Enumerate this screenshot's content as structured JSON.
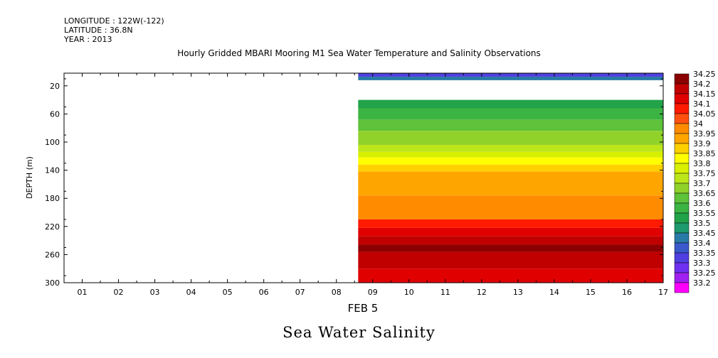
{
  "header": {
    "longitude": "LONGITUDE : 122W(-122)",
    "latitude": "LATITUDE : 36.8N",
    "year": "YEAR : 2013"
  },
  "chart_title": "Hourly Gridded MBARI Mooring M1 Sea Water Temperature and Salinity Observations",
  "variable_title": "Sea Water Salinity",
  "chart_data": {
    "type": "heatmap",
    "title": "Hourly Gridded MBARI Mooring M1 Sea Water Temperature and Salinity Observations",
    "variable": "Sea Water Salinity",
    "xlabel": "FEB 5",
    "ylabel": "DEPTH (m)",
    "x_ticks": [
      "01",
      "02",
      "03",
      "04",
      "05",
      "06",
      "07",
      "08",
      "09",
      "10",
      "11",
      "12",
      "13",
      "14",
      "15",
      "16",
      "17"
    ],
    "xlim": [
      0.5,
      17
    ],
    "y_ticks": [
      20,
      60,
      100,
      140,
      180,
      220,
      260,
      300
    ],
    "ylim": [
      300,
      2
    ],
    "data_start_hour": 8.6,
    "colorbar_levels": [
      "34.25",
      "34.2",
      "34.15",
      "34.1",
      "34.05",
      "34",
      "33.95",
      "33.9",
      "33.85",
      "33.8",
      "33.75",
      "33.7",
      "33.65",
      "33.6",
      "33.55",
      "33.5",
      "33.45",
      "33.4",
      "33.35",
      "33.3",
      "33.25",
      "33.2"
    ],
    "colorbar_colors": [
      "#8b0000",
      "#c00000",
      "#e00000",
      "#ff1a00",
      "#ff5010",
      "#ff8c00",
      "#ffa500",
      "#ffd000",
      "#ffff00",
      "#d8f000",
      "#bde61a",
      "#90d22a",
      "#5ec23a",
      "#3cb444",
      "#22a34a",
      "#1f9a6e",
      "#2a7aa8",
      "#3a5acc",
      "#5040e0",
      "#7030f0",
      "#a020f0",
      "#ff00ff"
    ],
    "depth_bands": [
      {
        "top": 2,
        "bottom": 7,
        "salinity": 33.35
      },
      {
        "top": 7,
        "bottom": 12,
        "salinity": 33.45
      },
      {
        "top": 40,
        "bottom": 52,
        "salinity": 33.55
      },
      {
        "top": 52,
        "bottom": 68,
        "salinity": 33.6
      },
      {
        "top": 68,
        "bottom": 84,
        "salinity": 33.65
      },
      {
        "top": 84,
        "bottom": 104,
        "salinity": 33.7
      },
      {
        "top": 104,
        "bottom": 114,
        "salinity": 33.75
      },
      {
        "top": 114,
        "bottom": 122,
        "salinity": 33.8
      },
      {
        "top": 122,
        "bottom": 132,
        "salinity": 33.85
      },
      {
        "top": 132,
        "bottom": 142,
        "salinity": 33.9
      },
      {
        "top": 142,
        "bottom": 176,
        "salinity": 33.95
      },
      {
        "top": 176,
        "bottom": 210,
        "salinity": 34.0
      },
      {
        "top": 210,
        "bottom": 222,
        "salinity": 34.1
      },
      {
        "top": 222,
        "bottom": 234,
        "salinity": 34.15
      },
      {
        "top": 234,
        "bottom": 246,
        "salinity": 34.2
      },
      {
        "top": 246,
        "bottom": 256,
        "salinity": 34.25
      },
      {
        "top": 256,
        "bottom": 280,
        "salinity": 34.2
      },
      {
        "top": 280,
        "bottom": 300,
        "salinity": 34.15
      }
    ]
  }
}
